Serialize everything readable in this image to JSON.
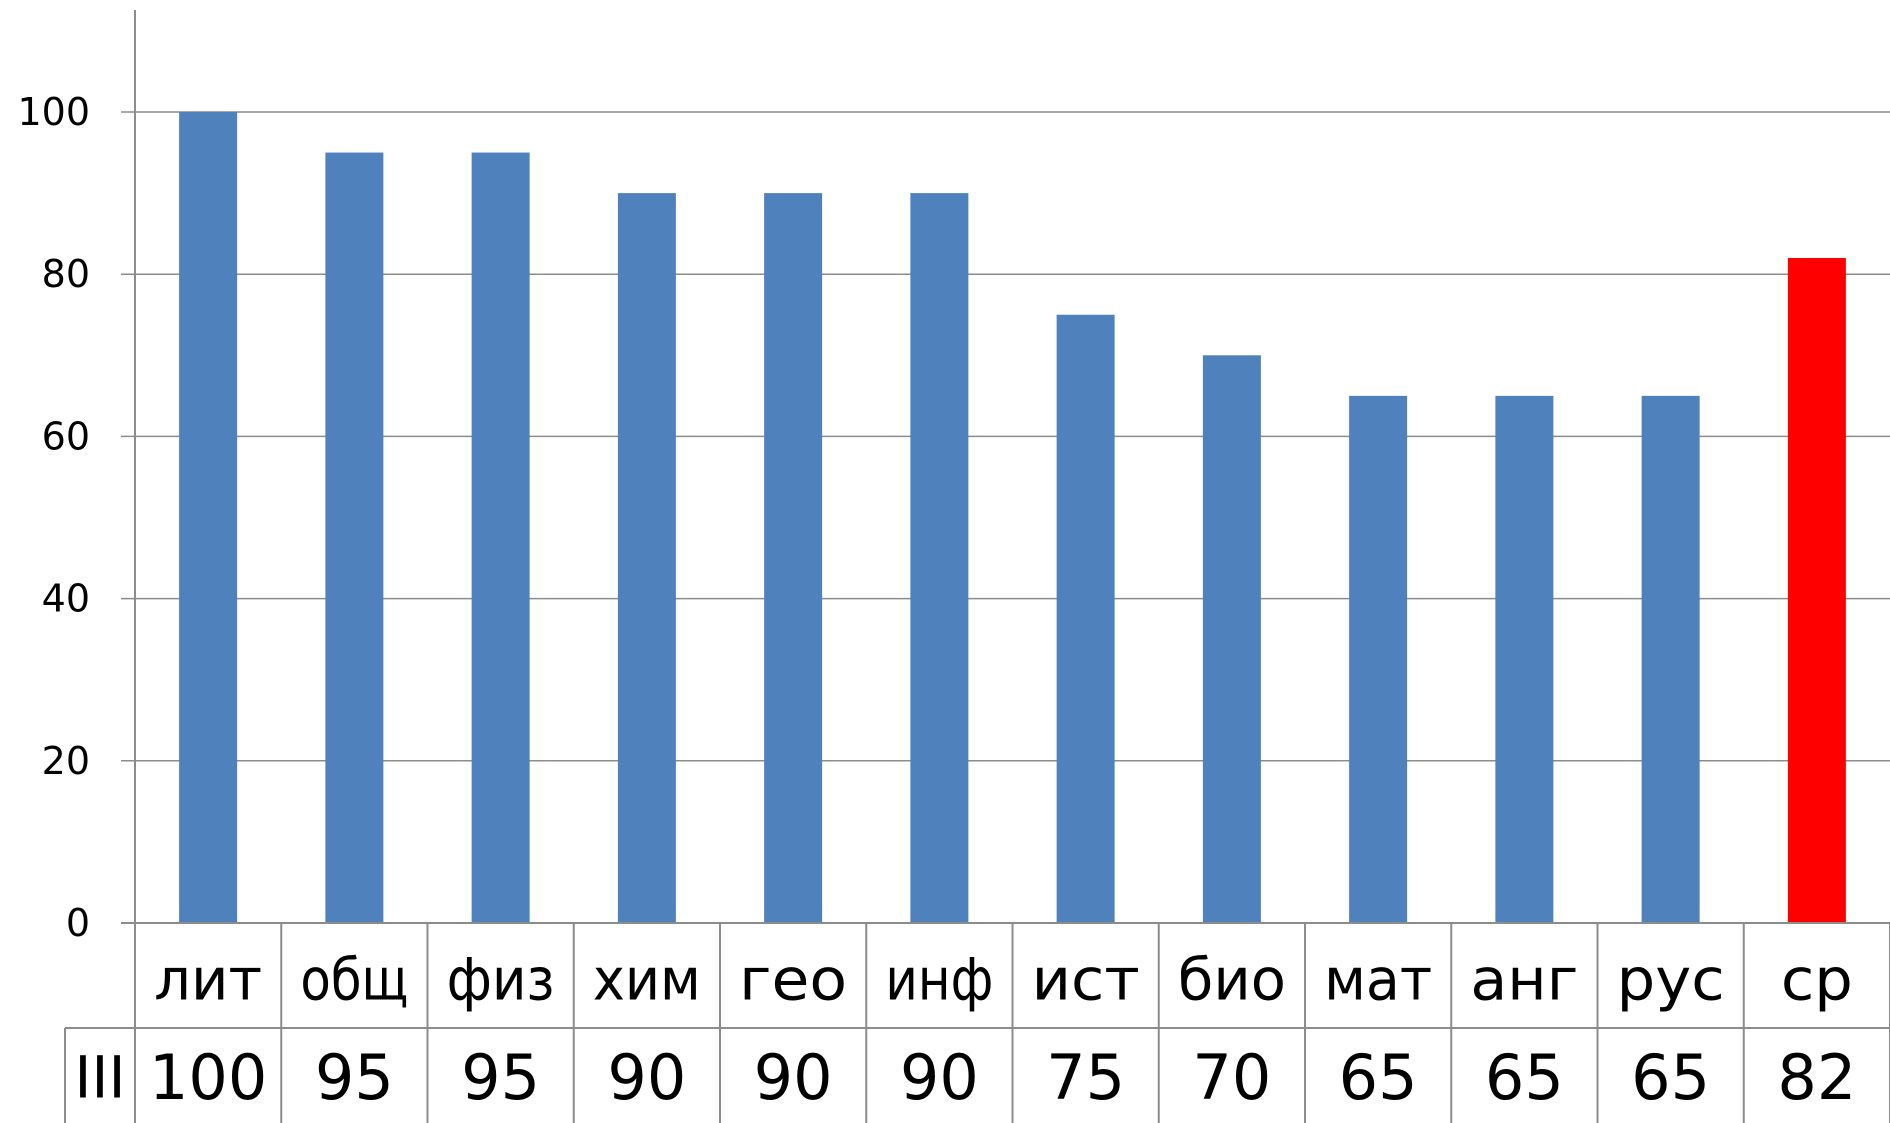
{
  "chart_data": {
    "type": "bar",
    "categories": [
      "лит",
      "общ",
      "физ",
      "хим",
      "гео",
      "инф",
      "ист",
      "био",
      "мат",
      "анг",
      "рус",
      "ср"
    ],
    "series": [
      {
        "name": "III",
        "values": [
          100,
          95,
          95,
          90,
          90,
          90,
          75,
          70,
          65,
          65,
          65,
          82
        ],
        "color": "#4f81bd",
        "highlight_color": "#ff0000",
        "highlight_category": "ср"
      }
    ],
    "ylim": [
      0,
      110
    ],
    "yticks": [
      0,
      20,
      40,
      60,
      80,
      100
    ],
    "grid": true,
    "data_table": true,
    "gridline_color": "#8c8c8c",
    "axis_color": "#8c8c8c"
  }
}
